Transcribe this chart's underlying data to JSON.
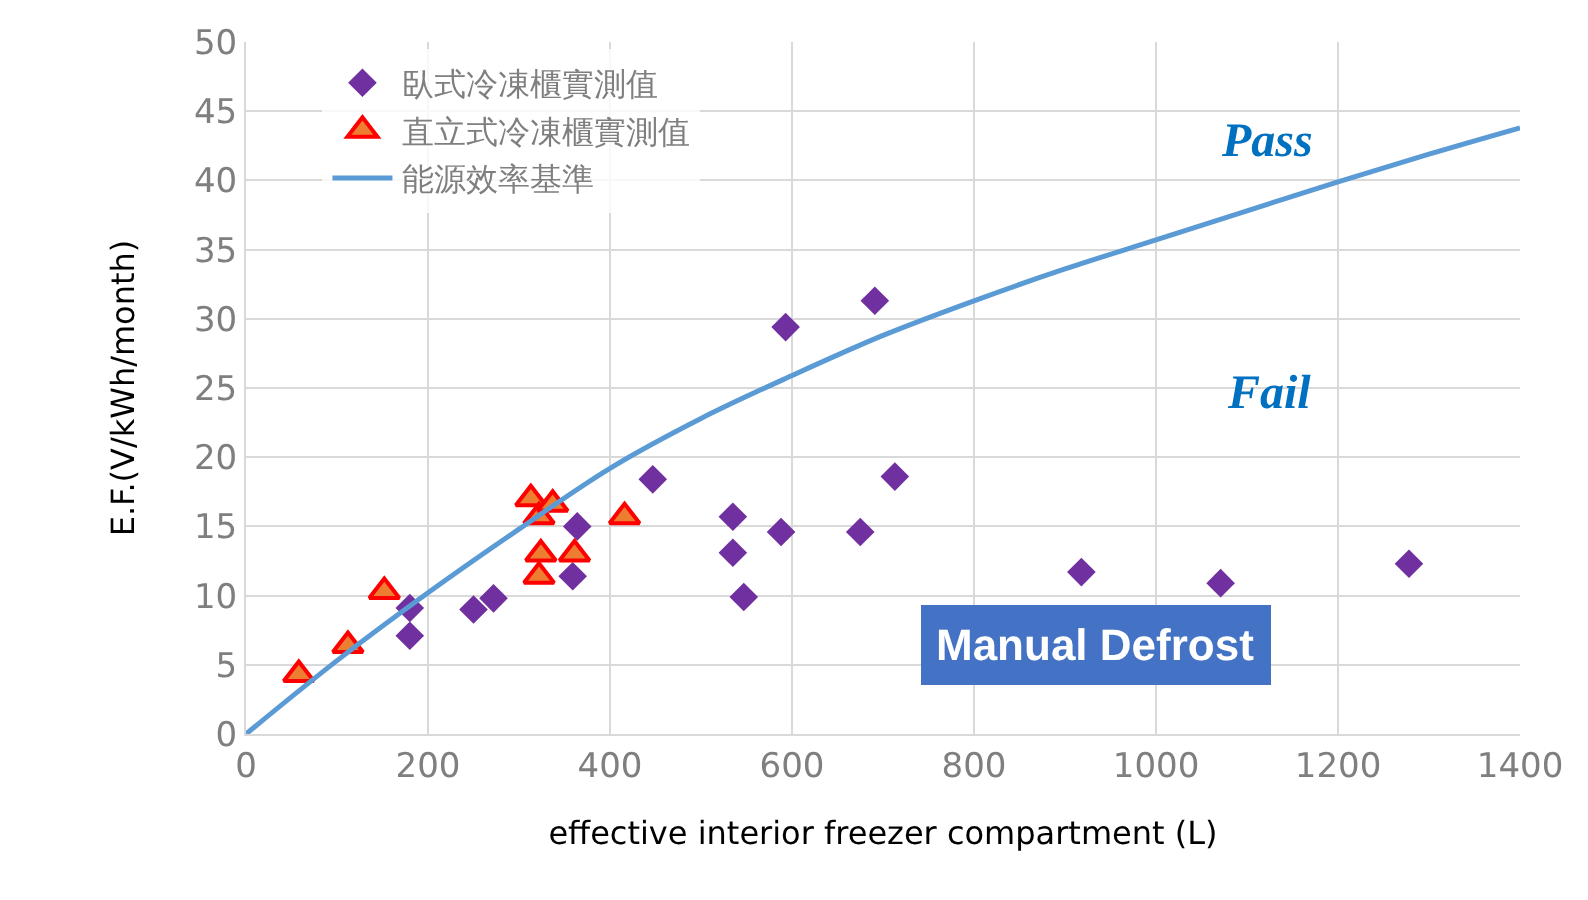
{
  "chart_data": {
    "type": "scatter",
    "xlabel": "effective interior freezer compartment (L)",
    "ylabel": "E.F.(V/kWh/month)",
    "xlim": [
      0,
      1400
    ],
    "xticks": [
      0,
      200,
      400,
      600,
      800,
      1000,
      1200,
      1400
    ],
    "ylim": [
      0,
      50
    ],
    "yticks": [
      0,
      5,
      10,
      15,
      20,
      25,
      30,
      35,
      40,
      45,
      50
    ],
    "grid": true,
    "legend": "top left",
    "annotations": [
      "Pass",
      "Fail",
      "Manual Defrost"
    ],
    "series": [
      {
        "name": "臥式冷凍櫃實測值",
        "marker": "diamond",
        "color": "#7030a0",
        "x": [
          180,
          180,
          250,
          272,
          359,
          364,
          447,
          535,
          535,
          547,
          588,
          593,
          675,
          691,
          713,
          918,
          1071,
          1278
        ],
        "values": [
          7.1,
          9.1,
          9.0,
          9.8,
          11.4,
          15.0,
          18.4,
          15.7,
          13.1,
          9.9,
          14.6,
          29.4,
          14.6,
          31.3,
          18.6,
          11.7,
          10.9,
          12.3
        ]
      },
      {
        "name": "直立式冷凍櫃實測值",
        "marker": "triangle",
        "color": "#ed7d31",
        "x": [
          58,
          112,
          152,
          313,
          322,
          322,
          324,
          337,
          361,
          416
        ],
        "values": [
          4.3,
          6.4,
          10.3,
          17.0,
          15.7,
          11.4,
          13.0,
          16.6,
          13.0,
          15.7
        ]
      },
      {
        "name": "能源效率基準",
        "type": "line",
        "marker": "none",
        "color": "#5b9bd5",
        "x": [
          0,
          100,
          200,
          300,
          400,
          500,
          600,
          700,
          800,
          900,
          1000,
          1100,
          1200,
          1300,
          1400
        ],
        "values": [
          0,
          5.3,
          10.2,
          14.8,
          19.2,
          22.8,
          25.9,
          28.8,
          31.3,
          33.6,
          35.7,
          37.8,
          39.9,
          41.9,
          43.8
        ]
      }
    ]
  }
}
